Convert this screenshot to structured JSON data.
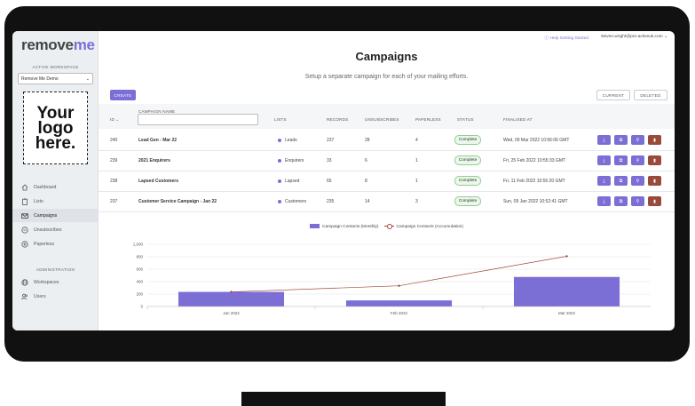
{
  "sidebar": {
    "brand_a": "remove",
    "brand_b": "me",
    "workspace_label": "ACTIVE WORKSPACE",
    "workspace_value": "Remove Me Demo",
    "logo_text": [
      "Your",
      "logo",
      "here."
    ],
    "nav": [
      {
        "label": "Dashboard",
        "icon": "home-icon"
      },
      {
        "label": "Lists",
        "icon": "clipboard-icon"
      },
      {
        "label": "Campaigns",
        "icon": "mail-icon",
        "active": true
      },
      {
        "label": "Unsubscribes",
        "icon": "minus-circle-icon"
      },
      {
        "label": "Paperless",
        "icon": "plus-circle-icon"
      }
    ],
    "admin_label": "ADMINISTRATION",
    "admin_nav": [
      {
        "label": "Workspaces",
        "icon": "globe-icon"
      },
      {
        "label": "Users",
        "icon": "users-icon"
      }
    ]
  },
  "topbar": {
    "help": "Help Getting Started",
    "user": "steven.wright@pro-activeuk.com"
  },
  "page": {
    "title": "Campaigns",
    "subtitle": "Setup a separate campaign for each of your mailing efforts."
  },
  "buttons": {
    "create": "CREATE",
    "current": "CURRENT",
    "deleted": "DELETED"
  },
  "table": {
    "headers": {
      "id": "ID",
      "name": "CAMPAIGN NAME",
      "lists": "LISTS",
      "records": "RECORDS",
      "unsubscribes": "UNSUBSCRIBES",
      "paperless": "PAPERLESS",
      "status": "STATUS",
      "finalised": "FINALISED AT"
    },
    "rows": [
      {
        "id": "240",
        "name": "Lead Gen - Mar 22",
        "list": "Leads",
        "records": "237",
        "unsubscribes": "28",
        "paperless": "4",
        "status": "Complete",
        "finalised": "Wed, 09 Mar 2022 10:56:06 GMT"
      },
      {
        "id": "239",
        "name": "2021 Enquirers",
        "list": "Enquirers",
        "records": "33",
        "unsubscribes": "6",
        "paperless": "1",
        "status": "Complete",
        "finalised": "Fri, 25 Feb 2022 10:55:33 GMT"
      },
      {
        "id": "238",
        "name": "Lapsed Customers",
        "list": "Lapsed",
        "records": "65",
        "unsubscribes": "8",
        "paperless": "1",
        "status": "Complete",
        "finalised": "Fri, 11 Feb 2022 10:55:20 GMT"
      },
      {
        "id": "237",
        "name": "Customer Service Campaign - Jan 22",
        "list": "Customers",
        "records": "235",
        "unsubscribes": "14",
        "paperless": "3",
        "status": "Complete",
        "finalised": "Sun, 09 Jan 2022 10:52:41 GMT"
      }
    ]
  },
  "chart_data": {
    "type": "bar",
    "categories": [
      "Jan 2022",
      "Feb 2022",
      "Mar 2022"
    ],
    "series": [
      {
        "name": "Campaign Contacts (Monthly)",
        "type": "bar",
        "values": [
          235,
          98,
          475
        ],
        "color": "#7b6fd6"
      },
      {
        "name": "Campaign Contacts (Accumulation)",
        "type": "line",
        "values": [
          235,
          333,
          808
        ],
        "color": "#a0463a"
      }
    ],
    "yticks": [
      "1,000",
      "800",
      "600",
      "400",
      "200",
      "0"
    ],
    "ylim": [
      0,
      1000
    ],
    "legend": "top"
  }
}
